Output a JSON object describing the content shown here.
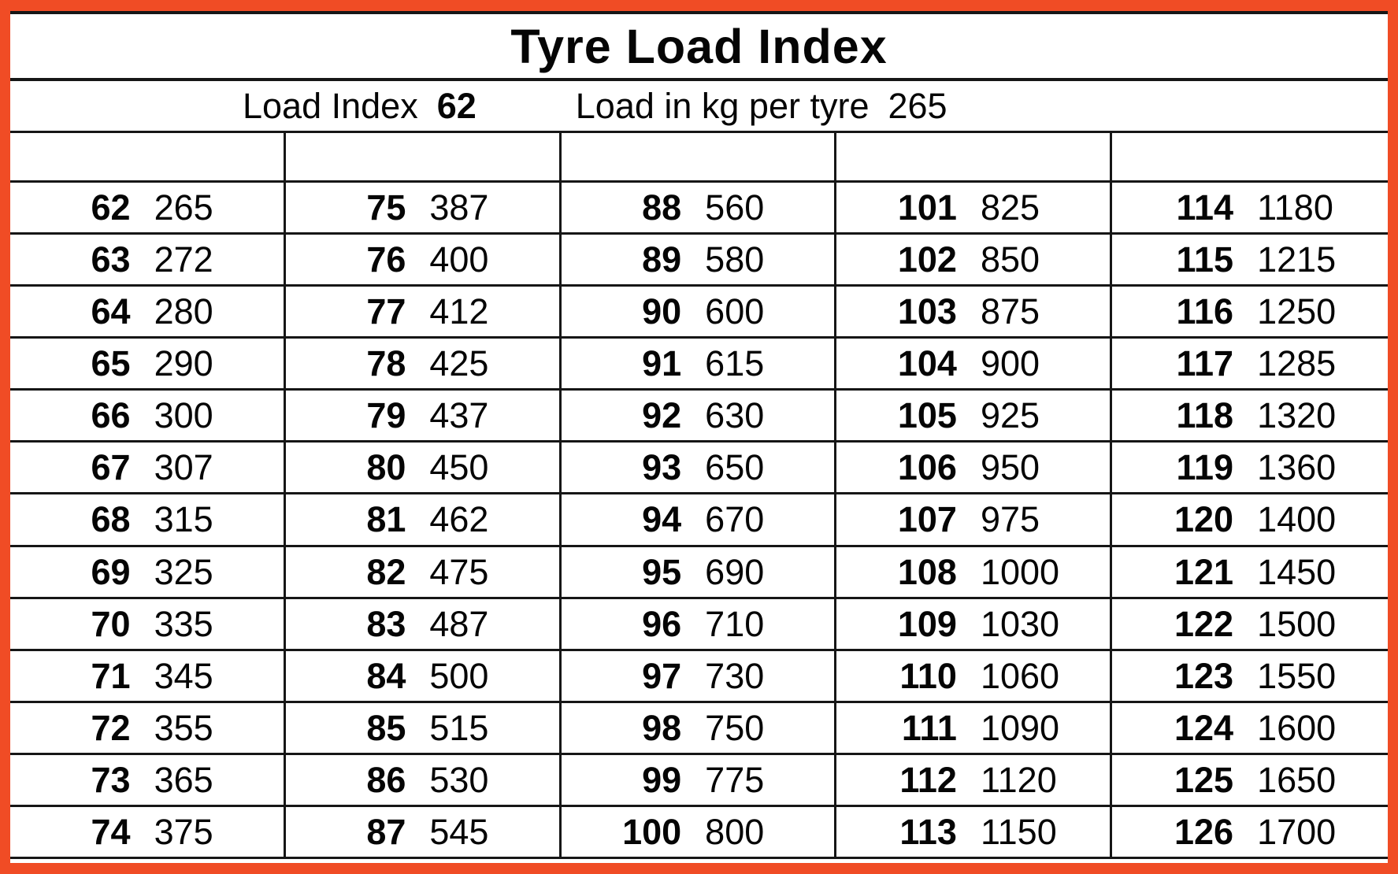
{
  "title": "Tyre Load Index",
  "subtitle": {
    "label1": "Load Index",
    "value1": "62",
    "label2": "Load in kg per tyre",
    "value2": "265"
  },
  "colors": {
    "border_orange": "#F04C25",
    "line_black": "#161616",
    "background": "#FFFFFF",
    "text": "#050505"
  },
  "table": {
    "row_count": 13,
    "column_count": 5,
    "columns": [
      {
        "rows": [
          {
            "index": "62",
            "load": "265"
          },
          {
            "index": "63",
            "load": "272"
          },
          {
            "index": "64",
            "load": "280"
          },
          {
            "index": "65",
            "load": "290"
          },
          {
            "index": "66",
            "load": "300"
          },
          {
            "index": "67",
            "load": "307"
          },
          {
            "index": "68",
            "load": "315"
          },
          {
            "index": "69",
            "load": "325"
          },
          {
            "index": "70",
            "load": "335"
          },
          {
            "index": "71",
            "load": "345"
          },
          {
            "index": "72",
            "load": "355"
          },
          {
            "index": "73",
            "load": "365"
          },
          {
            "index": "74",
            "load": "375"
          }
        ]
      },
      {
        "rows": [
          {
            "index": "75",
            "load": "387"
          },
          {
            "index": "76",
            "load": "400"
          },
          {
            "index": "77",
            "load": "412"
          },
          {
            "index": "78",
            "load": "425"
          },
          {
            "index": "79",
            "load": "437"
          },
          {
            "index": "80",
            "load": "450"
          },
          {
            "index": "81",
            "load": "462"
          },
          {
            "index": "82",
            "load": "475"
          },
          {
            "index": "83",
            "load": "487"
          },
          {
            "index": "84",
            "load": "500"
          },
          {
            "index": "85",
            "load": "515"
          },
          {
            "index": "86",
            "load": "530"
          },
          {
            "index": "87",
            "load": "545"
          }
        ]
      },
      {
        "rows": [
          {
            "index": "88",
            "load": "560"
          },
          {
            "index": "89",
            "load": "580"
          },
          {
            "index": "90",
            "load": "600"
          },
          {
            "index": "91",
            "load": "615"
          },
          {
            "index": "92",
            "load": "630"
          },
          {
            "index": "93",
            "load": "650"
          },
          {
            "index": "94",
            "load": "670"
          },
          {
            "index": "95",
            "load": "690"
          },
          {
            "index": "96",
            "load": "710"
          },
          {
            "index": "97",
            "load": "730"
          },
          {
            "index": "98",
            "load": "750"
          },
          {
            "index": "99",
            "load": "775"
          },
          {
            "index": "100",
            "load": "800"
          }
        ]
      },
      {
        "rows": [
          {
            "index": "101",
            "load": "825"
          },
          {
            "index": "102",
            "load": "850"
          },
          {
            "index": "103",
            "load": "875"
          },
          {
            "index": "104",
            "load": "900"
          },
          {
            "index": "105",
            "load": "925"
          },
          {
            "index": "106",
            "load": "950"
          },
          {
            "index": "107",
            "load": "975"
          },
          {
            "index": "108",
            "load": "1000"
          },
          {
            "index": "109",
            "load": "1030"
          },
          {
            "index": "110",
            "load": "1060"
          },
          {
            "index": "111",
            "load": "1090"
          },
          {
            "index": "112",
            "load": "1120"
          },
          {
            "index": "113",
            "load": "1150"
          }
        ]
      },
      {
        "rows": [
          {
            "index": "114",
            "load": "1180"
          },
          {
            "index": "115",
            "load": "1215"
          },
          {
            "index": "116",
            "load": "1250"
          },
          {
            "index": "117",
            "load": "1285"
          },
          {
            "index": "118",
            "load": "1320"
          },
          {
            "index": "119",
            "load": "1360"
          },
          {
            "index": "120",
            "load": "1400"
          },
          {
            "index": "121",
            "load": "1450"
          },
          {
            "index": "122",
            "load": "1500"
          },
          {
            "index": "123",
            "load": "1550"
          },
          {
            "index": "124",
            "load": "1600"
          },
          {
            "index": "125",
            "load": "1650"
          },
          {
            "index": "126",
            "load": "1700"
          }
        ]
      }
    ]
  }
}
